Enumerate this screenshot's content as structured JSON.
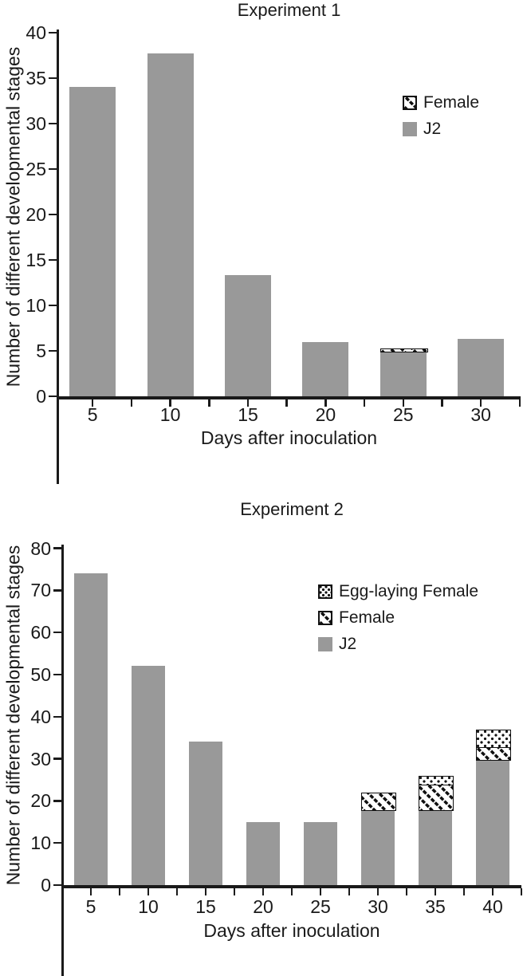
{
  "figure": {
    "background": "#ffffff",
    "bar_color": "#999999",
    "axis_color": "#1a1a1a",
    "pattern_ink": "#111111"
  },
  "chart_data": [
    {
      "type": "bar",
      "stacked": true,
      "title": "Experiment 1",
      "xlabel": "Days after inoculation",
      "ylabel": "Number of different developmental stages",
      "categories": [
        5,
        10,
        15,
        20,
        25,
        30
      ],
      "y_ticks": [
        0,
        5,
        10,
        15,
        20,
        25,
        30,
        35,
        40
      ],
      "ylim": [
        0,
        40
      ],
      "grid": false,
      "legend_position": "upper-right-inside",
      "series": [
        {
          "name": "Female",
          "pattern": "diagonal-hatch",
          "values": [
            0,
            0,
            0,
            0,
            0.3,
            0
          ]
        },
        {
          "name": "J2",
          "pattern": "solid-gray",
          "values": [
            34,
            37.7,
            13.3,
            6,
            5,
            6.3
          ]
        }
      ]
    },
    {
      "type": "bar",
      "stacked": true,
      "title": "Experiment 2",
      "xlabel": "Days after inoculation",
      "ylabel": "Number of different developmental stages",
      "categories": [
        5,
        10,
        15,
        20,
        25,
        30,
        35,
        40
      ],
      "y_ticks": [
        0,
        10,
        20,
        30,
        40,
        50,
        60,
        70,
        80
      ],
      "ylim": [
        0,
        80
      ],
      "grid": false,
      "legend_position": "upper-right-inside",
      "series": [
        {
          "name": "Egg-laying Female",
          "pattern": "dots",
          "values": [
            0,
            0,
            0,
            0,
            0,
            0,
            2,
            4
          ]
        },
        {
          "name": "Female",
          "pattern": "diagonal-hatch",
          "values": [
            0,
            0,
            0,
            0,
            0,
            4,
            6,
            3
          ]
        },
        {
          "name": "J2",
          "pattern": "solid-gray",
          "values": [
            74,
            52,
            34,
            15,
            15,
            18,
            18,
            30
          ]
        }
      ]
    }
  ]
}
